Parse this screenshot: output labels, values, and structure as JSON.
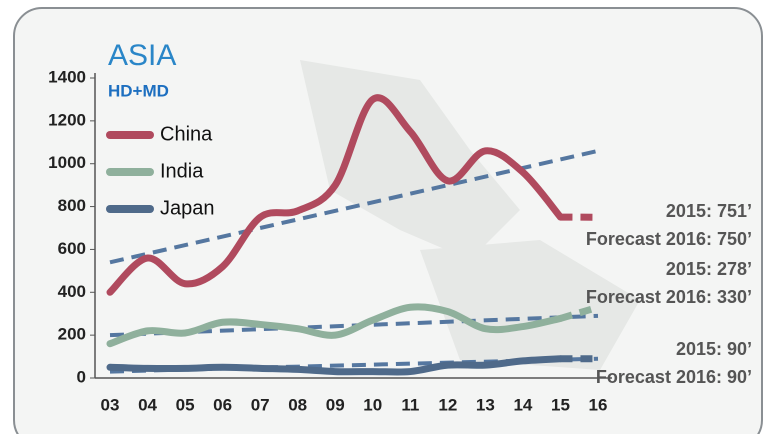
{
  "chart_data": {
    "type": "line",
    "title": "ASIA",
    "subtitle": "HD+MD",
    "categories": [
      "03",
      "04",
      "05",
      "06",
      "07",
      "08",
      "09",
      "10",
      "11",
      "12",
      "13",
      "14",
      "15",
      "16"
    ],
    "series": [
      {
        "name": "China",
        "color": "#b04a5e",
        "values": [
          400,
          560,
          440,
          520,
          750,
          780,
          900,
          1300,
          1150,
          920,
          1060,
          960,
          751,
          750
        ]
      },
      {
        "name": "India",
        "color": "#8fb09c",
        "values": [
          160,
          220,
          210,
          260,
          250,
          230,
          200,
          270,
          330,
          310,
          230,
          240,
          278,
          330
        ]
      },
      {
        "name": "Japan",
        "color": "#4f6a8a",
        "values": [
          50,
          45,
          45,
          50,
          45,
          40,
          30,
          30,
          30,
          60,
          60,
          80,
          90,
          90
        ]
      }
    ],
    "trendlines": [
      {
        "color": "#5577a0",
        "values": [
          540,
          1060
        ]
      },
      {
        "color": "#5577a0",
        "values": [
          200,
          290
        ]
      },
      {
        "color": "#5577a0",
        "values": [
          30,
          90
        ]
      }
    ],
    "ylim": [
      0,
      1400
    ],
    "yticks": [
      0,
      200,
      400,
      600,
      800,
      1000,
      1200,
      1400
    ],
    "annotations": [
      "2015: 751’",
      "Forecast 2016: 750’",
      "2015: 278’",
      "Forecast  2016: 330’",
      "2015: 90’",
      "Forecast 2016: 90’"
    ]
  }
}
